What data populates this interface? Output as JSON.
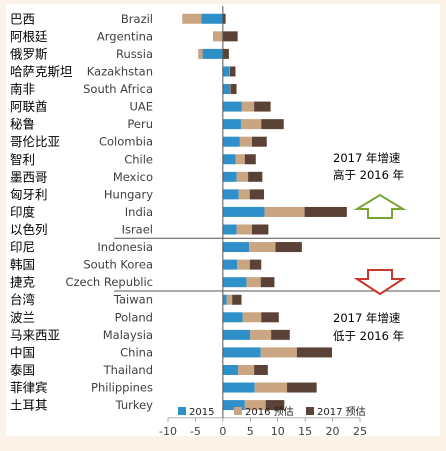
{
  "chart_data": {
    "type": "bar",
    "orientation": "horizontal",
    "stacked": true,
    "xlim": [
      -10,
      25
    ],
    "xticks": [
      -10,
      -5,
      0,
      5,
      10,
      15,
      20,
      25
    ],
    "colors": {
      "s2015": "#2f8fc9",
      "s2016": "#c9a582",
      "s2017": "#5a4236"
    },
    "series": [
      {
        "name": "2015"
      },
      {
        "name": "2016 预估"
      },
      {
        "name": "2017 预估"
      }
    ],
    "rows": [
      {
        "en": "Brazil",
        "zh": "巴西",
        "s2015": -3.9,
        "s2016": -3.5,
        "s2017": 0.5
      },
      {
        "en": "Argentina",
        "zh": "阿根廷",
        "s2015": 0.0,
        "s2016": -1.8,
        "s2017": 2.7
      },
      {
        "en": "Russia",
        "zh": "俄罗斯",
        "s2015": -3.7,
        "s2016": -0.8,
        "s2017": 1.1
      },
      {
        "en": "Kazakhstan",
        "zh": "哈萨克斯坦",
        "s2015": 1.2,
        "s2016": 0.1,
        "s2017": 1.0
      },
      {
        "en": "South Africa",
        "zh": "南非",
        "s2015": 1.3,
        "s2016": 0.1,
        "s2017": 1.1
      },
      {
        "en": "UAE",
        "zh": "阿联酋",
        "s2015": 3.4,
        "s2016": 2.3,
        "s2017": 3.0
      },
      {
        "en": "Peru",
        "zh": "秘鲁",
        "s2015": 3.3,
        "s2016": 3.7,
        "s2017": 4.1
      },
      {
        "en": "Colombia",
        "zh": "哥伦比亚",
        "s2015": 3.1,
        "s2016": 2.2,
        "s2017": 2.7
      },
      {
        "en": "Chile",
        "zh": "智利",
        "s2015": 2.3,
        "s2016": 1.7,
        "s2017": 2.0
      },
      {
        "en": "Mexico",
        "zh": "墨西哥",
        "s2015": 2.5,
        "s2016": 2.1,
        "s2017": 2.6
      },
      {
        "en": "Hungary",
        "zh": "匈牙利",
        "s2015": 2.9,
        "s2016": 2.0,
        "s2017": 2.6
      },
      {
        "en": "India",
        "zh": "印度",
        "s2015": 7.6,
        "s2016": 7.3,
        "s2017": 7.7
      },
      {
        "en": "Israel",
        "zh": "以色列",
        "s2015": 2.5,
        "s2016": 2.8,
        "s2017": 3.0
      },
      {
        "en": "Indonesia",
        "zh": "印尼",
        "s2015": 4.8,
        "s2016": 4.8,
        "s2017": 4.8
      },
      {
        "en": "South Korea",
        "zh": "韩国",
        "s2015": 2.6,
        "s2016": 2.3,
        "s2017": 2.1
      },
      {
        "en": "Czech Republic",
        "zh": "捷克",
        "s2015": 4.3,
        "s2016": 2.6,
        "s2017": 2.5
      },
      {
        "en": "Taiwan",
        "zh": "台湾",
        "s2015": 0.7,
        "s2016": 1.0,
        "s2017": 1.7
      },
      {
        "en": "Poland",
        "zh": "波兰",
        "s2015": 3.6,
        "s2016": 3.4,
        "s2017": 3.2
      },
      {
        "en": "Malaysia",
        "zh": "马来西亚",
        "s2015": 5.0,
        "s2016": 3.8,
        "s2017": 3.4
      },
      {
        "en": "China",
        "zh": "中国",
        "s2015": 6.9,
        "s2016": 6.6,
        "s2017": 6.4
      },
      {
        "en": "Thailand",
        "zh": "泰国",
        "s2015": 2.8,
        "s2016": 2.9,
        "s2017": 2.5
      },
      {
        "en": "Philippines",
        "zh": "菲律宾",
        "s2015": 5.8,
        "s2016": 5.9,
        "s2017": 5.4
      },
      {
        "en": "Turkey",
        "zh": "土耳其",
        "s2015": 4.0,
        "s2016": 3.8,
        "s2017": 3.4
      }
    ],
    "annotations": {
      "up_line1": "2017 年增速",
      "up_line2": "高于 2016 年",
      "down_line1": "2017 年增速",
      "down_line2": "低于 2016 年"
    },
    "separators_after": [
      "Israel",
      "Czech Republic"
    ],
    "legend_position": "bottom",
    "grid": false
  }
}
